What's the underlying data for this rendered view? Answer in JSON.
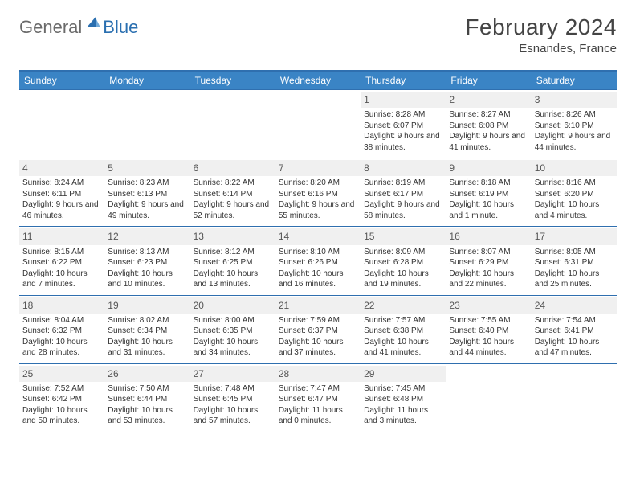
{
  "logo": {
    "general": "General",
    "blue": "Blue"
  },
  "title": "February 2024",
  "location": "Esnandes, France",
  "colors": {
    "headerBar": "#3a84c5",
    "ruleLine": "#2f6faf",
    "dayNumBg": "#f0f0f0",
    "logoGray": "#6a6a6a",
    "logoBlue": "#2a6fb0"
  },
  "daysOfWeek": [
    "Sunday",
    "Monday",
    "Tuesday",
    "Wednesday",
    "Thursday",
    "Friday",
    "Saturday"
  ],
  "weeks": [
    [
      null,
      null,
      null,
      null,
      {
        "n": "1",
        "sr": "8:28 AM",
        "ss": "6:07 PM",
        "dl": "9 hours and 38 minutes."
      },
      {
        "n": "2",
        "sr": "8:27 AM",
        "ss": "6:08 PM",
        "dl": "9 hours and 41 minutes."
      },
      {
        "n": "3",
        "sr": "8:26 AM",
        "ss": "6:10 PM",
        "dl": "9 hours and 44 minutes."
      }
    ],
    [
      {
        "n": "4",
        "sr": "8:24 AM",
        "ss": "6:11 PM",
        "dl": "9 hours and 46 minutes."
      },
      {
        "n": "5",
        "sr": "8:23 AM",
        "ss": "6:13 PM",
        "dl": "9 hours and 49 minutes."
      },
      {
        "n": "6",
        "sr": "8:22 AM",
        "ss": "6:14 PM",
        "dl": "9 hours and 52 minutes."
      },
      {
        "n": "7",
        "sr": "8:20 AM",
        "ss": "6:16 PM",
        "dl": "9 hours and 55 minutes."
      },
      {
        "n": "8",
        "sr": "8:19 AM",
        "ss": "6:17 PM",
        "dl": "9 hours and 58 minutes."
      },
      {
        "n": "9",
        "sr": "8:18 AM",
        "ss": "6:19 PM",
        "dl": "10 hours and 1 minute."
      },
      {
        "n": "10",
        "sr": "8:16 AM",
        "ss": "6:20 PM",
        "dl": "10 hours and 4 minutes."
      }
    ],
    [
      {
        "n": "11",
        "sr": "8:15 AM",
        "ss": "6:22 PM",
        "dl": "10 hours and 7 minutes."
      },
      {
        "n": "12",
        "sr": "8:13 AM",
        "ss": "6:23 PM",
        "dl": "10 hours and 10 minutes."
      },
      {
        "n": "13",
        "sr": "8:12 AM",
        "ss": "6:25 PM",
        "dl": "10 hours and 13 minutes."
      },
      {
        "n": "14",
        "sr": "8:10 AM",
        "ss": "6:26 PM",
        "dl": "10 hours and 16 minutes."
      },
      {
        "n": "15",
        "sr": "8:09 AM",
        "ss": "6:28 PM",
        "dl": "10 hours and 19 minutes."
      },
      {
        "n": "16",
        "sr": "8:07 AM",
        "ss": "6:29 PM",
        "dl": "10 hours and 22 minutes."
      },
      {
        "n": "17",
        "sr": "8:05 AM",
        "ss": "6:31 PM",
        "dl": "10 hours and 25 minutes."
      }
    ],
    [
      {
        "n": "18",
        "sr": "8:04 AM",
        "ss": "6:32 PM",
        "dl": "10 hours and 28 minutes."
      },
      {
        "n": "19",
        "sr": "8:02 AM",
        "ss": "6:34 PM",
        "dl": "10 hours and 31 minutes."
      },
      {
        "n": "20",
        "sr": "8:00 AM",
        "ss": "6:35 PM",
        "dl": "10 hours and 34 minutes."
      },
      {
        "n": "21",
        "sr": "7:59 AM",
        "ss": "6:37 PM",
        "dl": "10 hours and 37 minutes."
      },
      {
        "n": "22",
        "sr": "7:57 AM",
        "ss": "6:38 PM",
        "dl": "10 hours and 41 minutes."
      },
      {
        "n": "23",
        "sr": "7:55 AM",
        "ss": "6:40 PM",
        "dl": "10 hours and 44 minutes."
      },
      {
        "n": "24",
        "sr": "7:54 AM",
        "ss": "6:41 PM",
        "dl": "10 hours and 47 minutes."
      }
    ],
    [
      {
        "n": "25",
        "sr": "7:52 AM",
        "ss": "6:42 PM",
        "dl": "10 hours and 50 minutes."
      },
      {
        "n": "26",
        "sr": "7:50 AM",
        "ss": "6:44 PM",
        "dl": "10 hours and 53 minutes."
      },
      {
        "n": "27",
        "sr": "7:48 AM",
        "ss": "6:45 PM",
        "dl": "10 hours and 57 minutes."
      },
      {
        "n": "28",
        "sr": "7:47 AM",
        "ss": "6:47 PM",
        "dl": "11 hours and 0 minutes."
      },
      {
        "n": "29",
        "sr": "7:45 AM",
        "ss": "6:48 PM",
        "dl": "11 hours and 3 minutes."
      },
      null,
      null
    ]
  ],
  "labels": {
    "sunrise": "Sunrise:",
    "sunset": "Sunset:",
    "daylight": "Daylight:"
  }
}
